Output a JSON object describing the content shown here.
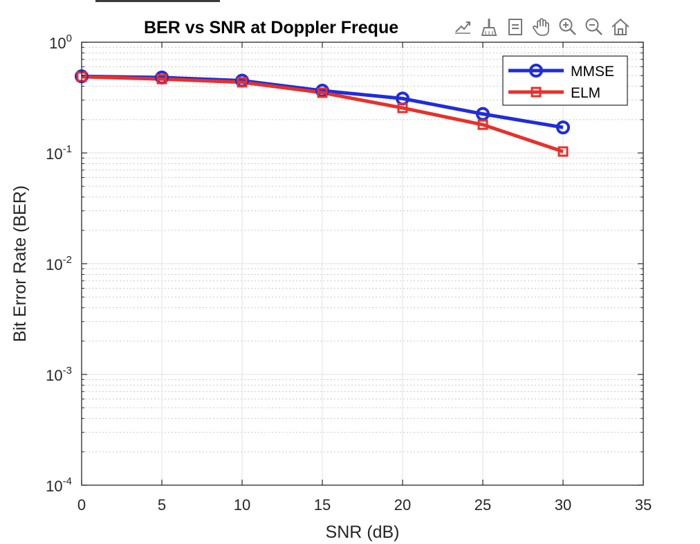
{
  "chart_data": {
    "type": "line",
    "title": "BER vs SNR at Doppler Freque",
    "xlabel": "SNR (dB)",
    "ylabel": "Bit Error Rate (BER)",
    "xlim": [
      0,
      35
    ],
    "ylim": [
      0.0001,
      1
    ],
    "yscale": "log",
    "grid": true,
    "minor_grid": true,
    "legend_position": "top-right",
    "x_ticks": [
      "0",
      "5",
      "10",
      "15",
      "20",
      "25",
      "30",
      "35"
    ],
    "y_ticks": [
      {
        "base": "10",
        "exp": "0",
        "value": 1
      },
      {
        "base": "10",
        "exp": "-1",
        "value": 0.1
      },
      {
        "base": "10",
        "exp": "-2",
        "value": 0.01
      },
      {
        "base": "10",
        "exp": "-3",
        "value": 0.001
      },
      {
        "base": "10",
        "exp": "-4",
        "value": 0.0001
      }
    ],
    "x": [
      0,
      5,
      10,
      15,
      20,
      25,
      30
    ],
    "series": [
      {
        "name": "MMSE",
        "color": "#1f2ddb",
        "marker": "circle",
        "values": [
          0.492,
          0.48,
          0.45,
          0.365,
          0.31,
          0.225,
          0.17
        ]
      },
      {
        "name": "ELM",
        "color": "#e8302a",
        "marker": "square",
        "values": [
          0.488,
          0.465,
          0.435,
          0.35,
          0.255,
          0.18,
          0.103
        ]
      }
    ]
  },
  "toolbar": {
    "icons": [
      "export-icon",
      "brush-icon",
      "datatip-icon",
      "pan-icon",
      "zoom-in-icon",
      "zoom-out-icon",
      "home-icon"
    ]
  }
}
